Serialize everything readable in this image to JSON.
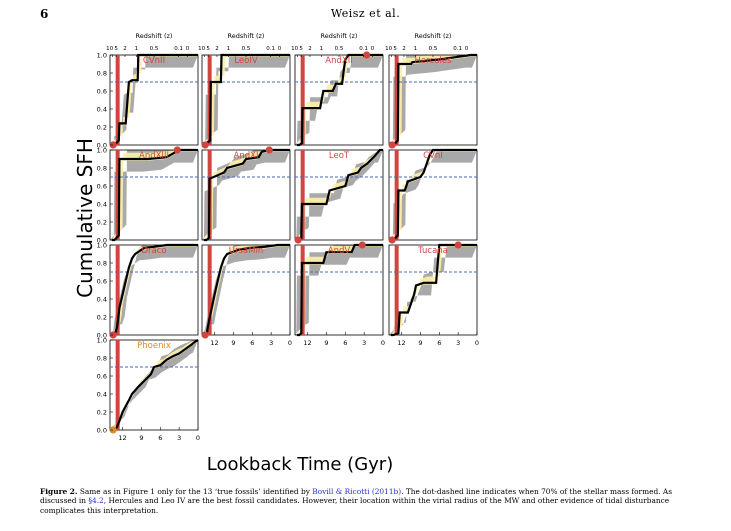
{
  "header": {
    "page_number": "6",
    "running_head": "Weisz et al."
  },
  "figure": {
    "y_label": "Cumulative SFH",
    "x_label": "Lookback Time (Gyr)",
    "redshift_label": "Redshift (z)",
    "redshift_ticks": [
      "10",
      "5",
      "2",
      "1",
      "0.5",
      "0.1",
      "0"
    ],
    "time_ticks": [
      "12",
      "9",
      "6",
      "3",
      "0"
    ],
    "y_ticks": [
      "0.0",
      "0.2",
      "0.4",
      "0.6",
      "0.8",
      "1.0"
    ],
    "colors": {
      "red_band": "#d0463f",
      "uncertainty_gray": "#a9a9a9",
      "uncertainty_yellow": "#fdf0a8",
      "dashed_line": "#4a6ab0",
      "galaxy_name": "#d0463f",
      "galaxy_name_alt": "#e08a2a",
      "sfh_line": "#000000"
    },
    "threshold_level": 0.7
  },
  "chart_data": [
    {
      "type": "line",
      "name": "CVnII",
      "x": [
        13.7,
        13.3,
        12.6,
        12.5,
        11.5,
        11.0,
        10.5,
        9.6,
        9.5,
        6,
        4,
        1,
        0
      ],
      "y": [
        0,
        0,
        0.05,
        0.24,
        0.24,
        0.7,
        0.72,
        0.72,
        1.0,
        1.0,
        1.0,
        1.0,
        1.0
      ],
      "marker_value": 0.0,
      "marker_time": 13.5
    },
    {
      "type": "line",
      "name": "LeoIV",
      "x": [
        13.7,
        13.3,
        12.7,
        12.6,
        11,
        10.9,
        8,
        4,
        1,
        0
      ],
      "y": [
        0,
        0.02,
        0.05,
        0.7,
        0.7,
        1.0,
        1.0,
        1.0,
        1.0,
        1.0
      ],
      "marker_value": 0.0,
      "marker_time": 13.5
    },
    {
      "type": "line",
      "name": "AndXII",
      "x": [
        13.7,
        13.3,
        12.9,
        12.8,
        10,
        9.5,
        8,
        7.5,
        6.5,
        6.2,
        6,
        5.5,
        4.5,
        3.2,
        2.3,
        0
      ],
      "y": [
        0,
        0,
        0.02,
        0.41,
        0.41,
        0.6,
        0.6,
        0.68,
        0.68,
        0.85,
        0.95,
        1.0,
        1.0,
        1.0,
        1.0,
        1.0
      ],
      "marker_value": 1.0,
      "marker_time": 2.6
    },
    {
      "type": "line",
      "name": "Hercules",
      "x": [
        13.7,
        13.3,
        12.6,
        12.5,
        10.5,
        10.3,
        6,
        3,
        1,
        0
      ],
      "y": [
        0,
        0,
        0.05,
        0.9,
        0.9,
        0.92,
        0.95,
        0.98,
        1.0,
        1.0
      ],
      "marker_value": 0.0,
      "marker_time": 13.5
    },
    {
      "type": "line",
      "name": "AndXIII",
      "x": [
        13.7,
        13.3,
        12.6,
        12.5,
        11,
        10,
        8,
        5,
        3,
        2.5,
        0
      ],
      "y": [
        0,
        0,
        0.05,
        0.9,
        0.9,
        0.9,
        0.9,
        0.92,
        1.0,
        1.0,
        1.0
      ],
      "marker_value": 1.0,
      "marker_time": 3.3
    },
    {
      "type": "line",
      "name": "AndXI",
      "x": [
        13.7,
        13.3,
        12.9,
        12.8,
        10.5,
        10,
        7.5,
        7,
        5,
        4.5,
        3.2,
        0
      ],
      "y": [
        0,
        0,
        0.02,
        0.68,
        0.75,
        0.8,
        0.85,
        0.9,
        0.92,
        0.98,
        1.0,
        1.0
      ],
      "marker_value": 1.0,
      "marker_time": 3.3
    },
    {
      "type": "line",
      "name": "LeoT",
      "x": [
        13.7,
        13.3,
        13,
        12.9,
        9,
        8.5,
        6,
        5.5,
        4,
        3.5,
        2.5,
        1.5,
        0.5,
        0
      ],
      "y": [
        0,
        0,
        0.02,
        0.4,
        0.4,
        0.55,
        0.6,
        0.72,
        0.75,
        0.8,
        0.85,
        0.92,
        1.0,
        1.0
      ],
      "marker_value": 0.0,
      "marker_time": 13.5
    },
    {
      "type": "line",
      "name": "CVnI",
      "x": [
        13.7,
        13.3,
        12.6,
        12.5,
        11.5,
        11,
        9,
        8.5,
        7.5,
        7,
        4,
        1,
        0
      ],
      "y": [
        0,
        0,
        0.05,
        0.55,
        0.55,
        0.65,
        0.7,
        0.75,
        0.95,
        1.0,
        1.0,
        1.0,
        1.0
      ],
      "marker_value": 0.0,
      "marker_time": 13.5
    },
    {
      "type": "line",
      "name": "Draco",
      "x": [
        13.7,
        13.3,
        12.9,
        12.7,
        12.5,
        12,
        11.5,
        11,
        10.5,
        10,
        8.5,
        7,
        5,
        3,
        1,
        0
      ],
      "y": [
        0,
        0,
        0.08,
        0.18,
        0.3,
        0.45,
        0.6,
        0.75,
        0.85,
        0.9,
        0.97,
        0.98,
        1.0,
        1.0,
        1.0,
        1.0
      ],
      "marker_value": 0.0,
      "marker_time": 13.5
    },
    {
      "type": "line",
      "name": "UrsaMin",
      "x": [
        13.7,
        13.3,
        12.9,
        12.5,
        12,
        11.5,
        11,
        10.5,
        10,
        8,
        6,
        4,
        2,
        0
      ],
      "y": [
        0,
        0,
        0.15,
        0.28,
        0.45,
        0.6,
        0.75,
        0.85,
        0.9,
        0.95,
        0.97,
        0.98,
        1.0,
        1.0
      ],
      "marker_value": 0.0,
      "marker_time": 13.5
    },
    {
      "type": "line",
      "name": "AndV",
      "x": [
        13.7,
        13.3,
        13,
        12.9,
        9.5,
        9,
        5,
        4.5,
        3.5,
        0
      ],
      "y": [
        0,
        0,
        0.02,
        0.8,
        0.8,
        0.92,
        0.92,
        1.0,
        1.0,
        1.0
      ],
      "marker_value": 1.0,
      "marker_time": 3.3
    },
    {
      "type": "line",
      "name": "Tucana",
      "x": [
        13.7,
        13.3,
        12.5,
        12.3,
        11,
        10,
        9.7,
        8.5,
        7.5,
        6.5,
        6,
        3.5,
        2,
        0
      ],
      "y": [
        0,
        0,
        0.02,
        0.25,
        0.25,
        0.45,
        0.55,
        0.58,
        0.58,
        0.58,
        1.0,
        1.0,
        1.0,
        1.0
      ],
      "marker_value": 1.0,
      "marker_time": 3.0
    },
    {
      "type": "line",
      "name": "Phoenix",
      "x": [
        13.7,
        13.3,
        12.9,
        12.5,
        12,
        11,
        10.5,
        9.5,
        8.5,
        7.5,
        7,
        6,
        5,
        4,
        3,
        2,
        1,
        0.5,
        0
      ],
      "y": [
        0,
        0,
        0.03,
        0.1,
        0.2,
        0.33,
        0.4,
        0.48,
        0.55,
        0.62,
        0.7,
        0.72,
        0.78,
        0.82,
        0.85,
        0.9,
        0.95,
        0.98,
        1.0
      ],
      "marker_value": 0.0,
      "marker_time": 13.5
    }
  ],
  "caption": {
    "label": "Figure 2.",
    "text_before": " Same as in Figure 1 only for the 13 ‘true fossils’ identified by ",
    "citation": "Bovill & Ricotti (2011b)",
    "text_middle": ". The dot-dashed line indicates when 70% of the stellar mass formed. As discussed in ",
    "section_ref": "§4.2",
    "text_after": ", Hercules and Leo IV are the best fossil candidates. However, their location within the virial radius of the MW and other evidence of tidal disturbance complicates this interpretation."
  }
}
